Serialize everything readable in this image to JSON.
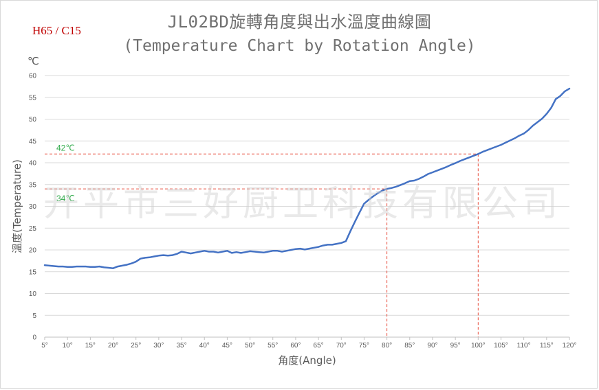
{
  "header": {
    "title_line1": "JL02BD旋轉角度與出水溫度曲線圖",
    "title_line2": "(Temperature Chart by Rotation Angle)",
    "model_label": "H65 / C15"
  },
  "watermark": "开平市三好厨卫科技有限公司",
  "chart_data": {
    "type": "line",
    "title": "JL02BD旋轉角度與出水溫度曲線圖 (Temperature Chart by Rotation Angle)",
    "xlabel": "角度(Angle)",
    "ylabel": "溫度(Temperature)",
    "y_unit": "℃",
    "xlim": [
      5,
      120
    ],
    "ylim": [
      0,
      60
    ],
    "x_ticks": [
      5,
      10,
      15,
      20,
      25,
      30,
      35,
      40,
      45,
      50,
      55,
      60,
      65,
      70,
      75,
      80,
      85,
      90,
      95,
      100,
      105,
      110,
      115,
      120
    ],
    "x_tick_labels": [
      "5°",
      "10°",
      "15°",
      "20°",
      "25°",
      "30°",
      "35°",
      "40°",
      "45°",
      "50°",
      "55°",
      "60°",
      "65°",
      "70°",
      "75°",
      "80°",
      "85°",
      "90°",
      "95°",
      "100°",
      "105°",
      "110°",
      "115°",
      "120°"
    ],
    "y_ticks": [
      0,
      5,
      10,
      15,
      20,
      25,
      30,
      35,
      40,
      45,
      50,
      55,
      60
    ],
    "grid": "horizontal",
    "line_color": "#4472c4",
    "series": [
      {
        "x": [
          5,
          6,
          7,
          8,
          9,
          10,
          11,
          12,
          13,
          14,
          15,
          16,
          17,
          18,
          19,
          20,
          21,
          22,
          23,
          24,
          25,
          26,
          27,
          28,
          29,
          30,
          31,
          32,
          33,
          34,
          35,
          36,
          37,
          38,
          39,
          40,
          41,
          42,
          43,
          44,
          45,
          46,
          47,
          48,
          49,
          50,
          51,
          52,
          53,
          54,
          55,
          56,
          57,
          58,
          59,
          60,
          61,
          62,
          63,
          64,
          65,
          66,
          67,
          68,
          69,
          70,
          71,
          72,
          73,
          74,
          75,
          76,
          77,
          78,
          79,
          80,
          81,
          82,
          83,
          84,
          85,
          86,
          87,
          88,
          89,
          90,
          91,
          92,
          93,
          94,
          95,
          96,
          97,
          98,
          99,
          100,
          101,
          102,
          103,
          104,
          105,
          106,
          107,
          108,
          109,
          110,
          111,
          112,
          113,
          114,
          115,
          116,
          117,
          118,
          119,
          120
        ],
        "values": [
          16.5,
          16.4,
          16.3,
          16.2,
          16.2,
          16.1,
          16.1,
          16.2,
          16.2,
          16.2,
          16.1,
          16.1,
          16.2,
          16.0,
          15.9,
          15.8,
          16.2,
          16.4,
          16.6,
          16.9,
          17.3,
          18.0,
          18.2,
          18.3,
          18.5,
          18.7,
          18.8,
          18.7,
          18.8,
          19.1,
          19.6,
          19.4,
          19.2,
          19.4,
          19.6,
          19.8,
          19.6,
          19.6,
          19.4,
          19.6,
          19.8,
          19.3,
          19.5,
          19.3,
          19.5,
          19.7,
          19.6,
          19.5,
          19.4,
          19.6,
          19.8,
          19.8,
          19.6,
          19.8,
          20.0,
          20.2,
          20.3,
          20.1,
          20.3,
          20.5,
          20.7,
          21.0,
          21.2,
          21.2,
          21.4,
          21.6,
          22.0,
          24.3,
          26.5,
          28.6,
          30.6,
          31.5,
          32.3,
          33.0,
          33.6,
          34.0,
          34.2,
          34.5,
          34.9,
          35.3,
          35.8,
          35.9,
          36.3,
          36.8,
          37.4,
          37.8,
          38.2,
          38.6,
          39.0,
          39.5,
          39.9,
          40.4,
          40.8,
          41.2,
          41.6,
          42.0,
          42.5,
          42.9,
          43.3,
          43.7,
          44.1,
          44.6,
          45.1,
          45.6,
          46.2,
          46.7,
          47.5,
          48.5,
          49.3,
          50.1,
          51.2,
          52.6,
          54.6,
          55.3,
          56.4,
          57.0
        ]
      }
    ],
    "reference_lines": [
      {
        "label": "42℃",
        "y": 42,
        "x": 100,
        "color": "#e74c3c"
      },
      {
        "label": "34℃",
        "y": 34,
        "x": 80,
        "color": "#e74c3c"
      }
    ]
  }
}
